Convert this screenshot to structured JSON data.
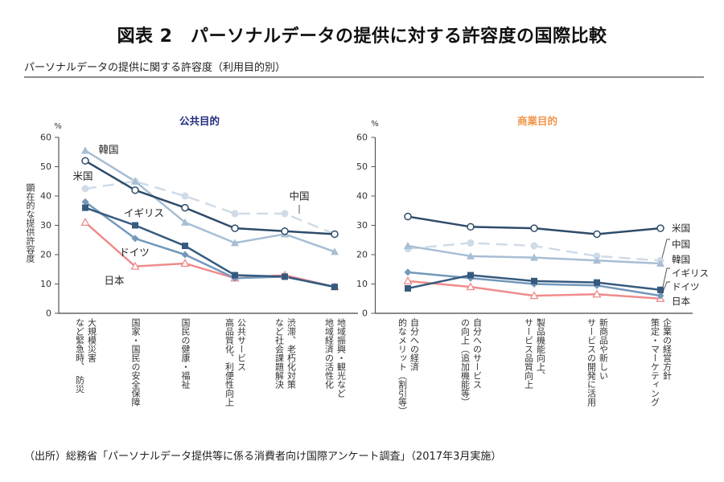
{
  "header": {
    "title": "図表 2　パーソナルデータの提供に対する許容度の国際比較",
    "subtitle": "パーソナルデータの提供に関する許容度（利用目的別）"
  },
  "footer": {
    "source": "（出所）総務省「パーソナルデータ提供等に係る消費者向け国際アンケート調査」（2017年3月実施）"
  },
  "chart_data": [
    {
      "type": "line",
      "title": "公共目的",
      "title_color": "#1f2a7c",
      "ylabel": "顕在的な提供許容度",
      "yunit": "%",
      "ylim": [
        0,
        60
      ],
      "yticks": [
        "0",
        "10",
        "20",
        "30",
        "40",
        "50",
        "60"
      ],
      "grid": false,
      "legend": "inline-labels",
      "categories": [
        [
          "大規模災害",
          "など緊急時、　防災"
        ],
        [
          "国家・国民の安全保障"
        ],
        [
          "国民の健康・福祉"
        ],
        [
          "公共サービス",
          "高品質化、利便性向上"
        ],
        [
          "渋滞、老朽化対策",
          "など社会課題解決"
        ],
        [
          "地域振興・観光など",
          "地域経済の活性化"
        ]
      ],
      "series": [
        {
          "name": "米国",
          "values": [
            52,
            42,
            36,
            29,
            28,
            27
          ],
          "color": "#2d4b68",
          "marker": "open-circle",
          "dashed": false
        },
        {
          "name": "中国",
          "values": [
            42.5,
            45,
            40,
            34,
            34,
            27
          ],
          "color": "#cfdbe7",
          "marker": "circle",
          "dashed": true
        },
        {
          "name": "韓国",
          "values": [
            55.5,
            45,
            31,
            24,
            27,
            21
          ],
          "color": "#a7bed3",
          "marker": "triangle",
          "dashed": false
        },
        {
          "name": "イギリス",
          "values": [
            36,
            30,
            23,
            13,
            12.5,
            9
          ],
          "color": "#355a7e",
          "marker": "square",
          "dashed": false
        },
        {
          "name": "ドイツ",
          "values": [
            38,
            25.5,
            20,
            12,
            12.5,
            9
          ],
          "color": "#7398ba",
          "marker": "diamond",
          "dashed": false
        },
        {
          "name": "日本",
          "values": [
            31,
            16,
            17,
            12,
            13,
            9
          ],
          "color": "#f08b8b",
          "marker": "open-triangle",
          "dashed": false
        }
      ]
    },
    {
      "type": "line",
      "title": "商業目的",
      "title_color": "#f0954a",
      "ylabel": "",
      "yunit": "%",
      "ylim": [
        0,
        60
      ],
      "yticks": [
        "0",
        "10",
        "20",
        "30",
        "40",
        "50",
        "60"
      ],
      "grid": false,
      "legend": "right",
      "categories": [
        [
          "自分への経済",
          "的なメリット（割引等）"
        ],
        [
          "自分へのサービス",
          "の向上（追加機能等）"
        ],
        [
          "製品機能向上、",
          "サービス品質向上"
        ],
        [
          "新商品や新しい",
          "サービスの開発に活用"
        ],
        [
          "企業の経営方針",
          "策定・マーケティング"
        ]
      ],
      "series": [
        {
          "name": "米国",
          "values": [
            33,
            29.5,
            29,
            27,
            29
          ],
          "color": "#2d4b68",
          "marker": "open-circle",
          "dashed": false
        },
        {
          "name": "中国",
          "values": [
            22,
            24,
            23,
            19.5,
            18
          ],
          "color": "#cfdbe7",
          "marker": "circle",
          "dashed": true
        },
        {
          "name": "韓国",
          "values": [
            23,
            19.5,
            19,
            18,
            17
          ],
          "color": "#a7bed3",
          "marker": "triangle",
          "dashed": false
        },
        {
          "name": "イギリス",
          "values": [
            8.5,
            13,
            11,
            10.5,
            8
          ],
          "color": "#355a7e",
          "marker": "square",
          "dashed": false
        },
        {
          "name": "ドイツ",
          "values": [
            14,
            12,
            10,
            9.5,
            6
          ],
          "color": "#7398ba",
          "marker": "diamond",
          "dashed": false
        },
        {
          "name": "日本",
          "values": [
            11,
            9,
            6,
            6.5,
            5
          ],
          "color": "#f08b8b",
          "marker": "open-triangle",
          "dashed": false
        }
      ]
    }
  ]
}
